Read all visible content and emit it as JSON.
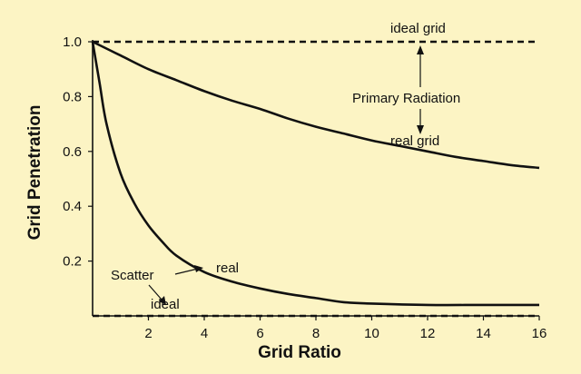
{
  "chart_data": {
    "type": "line",
    "xlabel": "Grid Ratio",
    "ylabel": "Grid Penetration",
    "xlim": [
      0,
      16
    ],
    "ylim": [
      0,
      1.0
    ],
    "x_ticks": [
      2,
      4,
      6,
      8,
      10,
      12,
      14,
      16
    ],
    "y_ticks": [
      0.2,
      0.4,
      0.6,
      0.8,
      1.0
    ],
    "y_tick_labels": [
      "0.2",
      "0.4",
      "0.6",
      "0.8",
      "1.0"
    ],
    "grid": false,
    "series": [
      {
        "name": "ideal grid",
        "style": "dashed",
        "x": [
          0,
          16
        ],
        "y": [
          1.0,
          1.0
        ]
      },
      {
        "name": "real grid",
        "style": "solid",
        "x": [
          0,
          1,
          2,
          3,
          4,
          5,
          6,
          7,
          8,
          9,
          10,
          11,
          12,
          13,
          14,
          15,
          16
        ],
        "y": [
          1.0,
          0.95,
          0.9,
          0.86,
          0.82,
          0.785,
          0.755,
          0.72,
          0.69,
          0.665,
          0.64,
          0.62,
          0.6,
          0.58,
          0.565,
          0.55,
          0.54
        ]
      },
      {
        "name": "Scatter real",
        "style": "solid",
        "x": [
          0,
          0.25,
          0.5,
          1,
          1.5,
          2,
          2.5,
          3,
          4,
          5,
          6,
          7,
          8,
          9,
          10,
          12,
          14,
          16
        ],
        "y": [
          1.0,
          0.85,
          0.7,
          0.52,
          0.41,
          0.33,
          0.27,
          0.22,
          0.16,
          0.125,
          0.1,
          0.08,
          0.065,
          0.05,
          0.045,
          0.04,
          0.04,
          0.04
        ]
      },
      {
        "name": "Scatter ideal",
        "style": "dashed",
        "x": [
          0,
          16
        ],
        "y": [
          0.0,
          0.0
        ]
      }
    ],
    "annotations": {
      "ideal_grid": "ideal grid",
      "primary_radiation": "Primary Radiation",
      "real_grid": "real grid",
      "scatter": "Scatter",
      "real": "real",
      "ideal": "ideal"
    }
  }
}
